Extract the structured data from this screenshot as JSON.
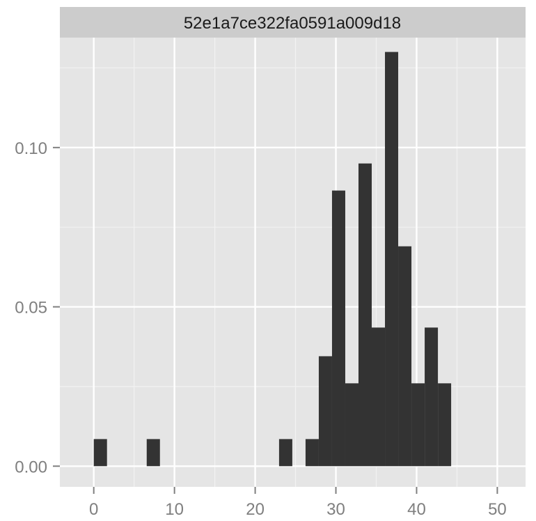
{
  "chart_data": {
    "type": "bar",
    "facet_label": "52e1a7ce322fa0591a009d18",
    "xlim": [
      -4.2,
      53.5
    ],
    "ylim": [
      -0.0065,
      0.1345
    ],
    "x_ticks": [
      0,
      10,
      20,
      30,
      40,
      50
    ],
    "x_tick_labels": [
      "0",
      "10",
      "20",
      "30",
      "40",
      "50"
    ],
    "y_ticks": [
      0.0,
      0.05,
      0.1
    ],
    "y_tick_labels": [
      "0.00",
      "0.05",
      "0.10"
    ],
    "x_minor_ticks": [
      5,
      15,
      25,
      35,
      45
    ],
    "y_minor_ticks": [
      0.025,
      0.075,
      0.125
    ],
    "grid": true,
    "bins": [
      {
        "x0": 0.0,
        "x1": 1.64,
        "y": 0.0085
      },
      {
        "x0": 6.56,
        "x1": 8.2,
        "y": 0.0085
      },
      {
        "x0": 22.96,
        "x1": 24.6,
        "y": 0.0085
      },
      {
        "x0": 26.24,
        "x1": 27.88,
        "y": 0.0085
      },
      {
        "x0": 27.88,
        "x1": 29.52,
        "y": 0.0345
      },
      {
        "x0": 29.52,
        "x1": 31.16,
        "y": 0.0865
      },
      {
        "x0": 31.16,
        "x1": 32.8,
        "y": 0.026
      },
      {
        "x0": 32.8,
        "x1": 34.44,
        "y": 0.095
      },
      {
        "x0": 34.44,
        "x1": 36.08,
        "y": 0.0435
      },
      {
        "x0": 36.08,
        "x1": 37.72,
        "y": 0.13
      },
      {
        "x0": 37.72,
        "x1": 39.36,
        "y": 0.069
      },
      {
        "x0": 39.36,
        "x1": 41.0,
        "y": 0.026
      },
      {
        "x0": 41.0,
        "x1": 42.64,
        "y": 0.0435
      },
      {
        "x0": 42.64,
        "x1": 44.28,
        "y": 0.026
      }
    ]
  },
  "colors": {
    "panel_background": "#e5e5e5",
    "strip_background": "#cccccc",
    "grid_major": "#ffffff",
    "grid_minor": "#f2f2f2",
    "bar_fill": "#333333",
    "tick_text": "#7f7f7f",
    "strip_text": "#1a1a1a"
  }
}
